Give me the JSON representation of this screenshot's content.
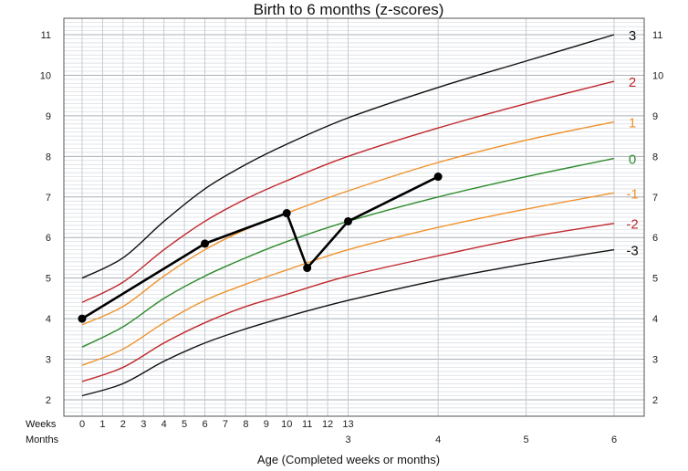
{
  "chart_data": {
    "type": "line",
    "title": "Birth to 6 months (z-scores)",
    "xlabel": "Age (Completed weeks or months)",
    "ylabel": "",
    "x_unit": "weeks",
    "xlim": [
      0,
      26
    ],
    "ylim": [
      2,
      11
    ],
    "grid": true,
    "y_ticks": [
      2,
      3,
      4,
      5,
      6,
      7,
      8,
      9,
      10,
      11
    ],
    "x_rows": {
      "weeks_label": "Weeks",
      "months_label": "Months",
      "week_ticks": [
        {
          "x": 0,
          "label": "0"
        },
        {
          "x": 1,
          "label": "1"
        },
        {
          "x": 2,
          "label": "2"
        },
        {
          "x": 3,
          "label": "3"
        },
        {
          "x": 4,
          "label": "4"
        },
        {
          "x": 5,
          "label": "5"
        },
        {
          "x": 6,
          "label": "6"
        },
        {
          "x": 7,
          "label": "7"
        },
        {
          "x": 8,
          "label": "8"
        },
        {
          "x": 9,
          "label": "9"
        },
        {
          "x": 10,
          "label": "10"
        },
        {
          "x": 11,
          "label": "11"
        },
        {
          "x": 12,
          "label": "12"
        },
        {
          "x": 13,
          "label": "13"
        }
      ],
      "month_ticks": [
        {
          "x": 13,
          "label": "3"
        },
        {
          "x": 17.4,
          "label": "4"
        },
        {
          "x": 21.7,
          "label": "5"
        },
        {
          "x": 26,
          "label": "6"
        }
      ]
    },
    "series": [
      {
        "name": "3",
        "color": "#111111",
        "x": [
          0,
          2,
          4,
          6,
          8,
          10,
          13,
          17.4,
          21.7,
          26
        ],
        "y": [
          5.0,
          5.5,
          6.4,
          7.2,
          7.8,
          8.3,
          8.95,
          9.7,
          10.35,
          11.0
        ]
      },
      {
        "name": "2",
        "color": "#c0282d",
        "x": [
          0,
          2,
          4,
          6,
          8,
          10,
          13,
          17.4,
          21.7,
          26
        ],
        "y": [
          4.4,
          4.9,
          5.7,
          6.4,
          6.95,
          7.4,
          8.0,
          8.7,
          9.3,
          9.85
        ]
      },
      {
        "name": "1",
        "color": "#f0922b",
        "x": [
          0,
          2,
          4,
          6,
          8,
          10,
          13,
          17.4,
          21.7,
          26
        ],
        "y": [
          3.85,
          4.3,
          5.05,
          5.7,
          6.2,
          6.6,
          7.15,
          7.85,
          8.4,
          8.85
        ]
      },
      {
        "name": "0",
        "color": "#2e8b2e",
        "x": [
          0,
          2,
          4,
          6,
          8,
          10,
          13,
          17.4,
          21.7,
          26
        ],
        "y": [
          3.3,
          3.8,
          4.5,
          5.05,
          5.5,
          5.9,
          6.4,
          7.0,
          7.5,
          7.95
        ]
      },
      {
        "name": "-1",
        "color": "#f0922b",
        "x": [
          0,
          2,
          4,
          6,
          8,
          10,
          13,
          17.4,
          21.7,
          26
        ],
        "y": [
          2.85,
          3.25,
          3.9,
          4.45,
          4.85,
          5.2,
          5.7,
          6.25,
          6.7,
          7.1
        ]
      },
      {
        "name": "-2",
        "color": "#c0282d",
        "x": [
          0,
          2,
          4,
          6,
          8,
          10,
          13,
          17.4,
          21.7,
          26
        ],
        "y": [
          2.45,
          2.8,
          3.4,
          3.9,
          4.3,
          4.6,
          5.05,
          5.55,
          6.0,
          6.35
        ]
      },
      {
        "name": "-3",
        "color": "#111111",
        "x": [
          0,
          2,
          4,
          6,
          8,
          10,
          13,
          17.4,
          21.7,
          26
        ],
        "y": [
          2.1,
          2.4,
          2.95,
          3.4,
          3.75,
          4.05,
          4.45,
          4.95,
          5.35,
          5.7
        ]
      }
    ],
    "measurements": {
      "color": "#000000",
      "x": [
        0,
        6,
        10,
        11,
        13,
        17.4
      ],
      "y": [
        4.0,
        5.85,
        6.6,
        5.25,
        6.4,
        7.5
      ]
    },
    "z_labels": [
      {
        "text": "3",
        "color": "#111111",
        "y": 11.0
      },
      {
        "text": "2",
        "color": "#c0282d",
        "y": 9.85
      },
      {
        "text": "1",
        "color": "#f0922b",
        "y": 8.85
      },
      {
        "text": "0",
        "color": "#2e8b2e",
        "y": 7.95
      },
      {
        "text": "-1",
        "color": "#f0922b",
        "y": 7.1
      },
      {
        "text": "-2",
        "color": "#c0282d",
        "y": 6.35
      },
      {
        "text": "-3",
        "color": "#111111",
        "y": 5.7
      }
    ]
  }
}
